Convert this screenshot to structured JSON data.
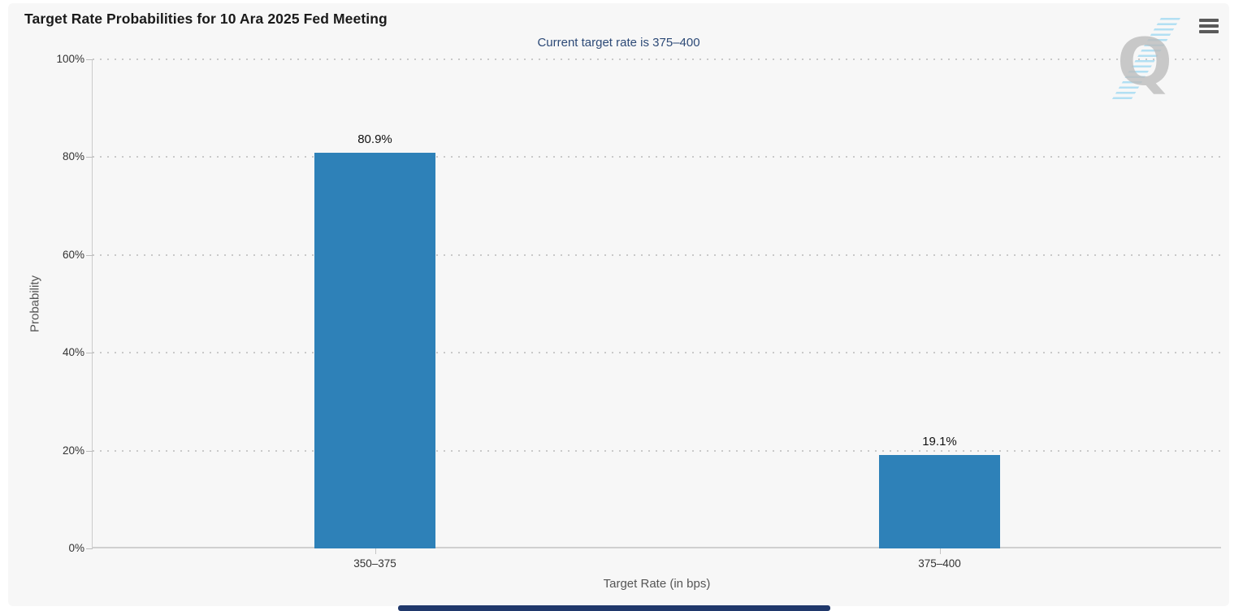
{
  "header": {
    "title": "Target Rate Probabilities for 10 Ara 2025 Fed Meeting",
    "subtitle": "Current target rate is 375–400",
    "menu_icon": "hamburger-menu-icon"
  },
  "watermark": {
    "letter": "Q",
    "color": "#bdbdbd",
    "stripe_color": "#7dcdf0"
  },
  "chart_data": {
    "type": "bar",
    "title": "Target Rate Probabilities for 10 Ara 2025 Fed Meeting",
    "subtitle": "Current target rate is 375–400",
    "categories": [
      "350–375",
      "375–400"
    ],
    "values": [
      80.9,
      19.1
    ],
    "value_labels": [
      "80.9%",
      "19.1%"
    ],
    "xlabel": "Target Rate (in bps)",
    "ylabel": "Probability",
    "ylim": [
      0,
      100
    ],
    "yticks": [
      0,
      20,
      40,
      60,
      80,
      100
    ],
    "ytick_labels": [
      "0%",
      "20%",
      "40%",
      "60%",
      "80%",
      "100%"
    ],
    "grid": "dotted-horizontal",
    "legend": "none",
    "bar_color": "#2e81b8",
    "background_color": "#f7f7f7"
  }
}
